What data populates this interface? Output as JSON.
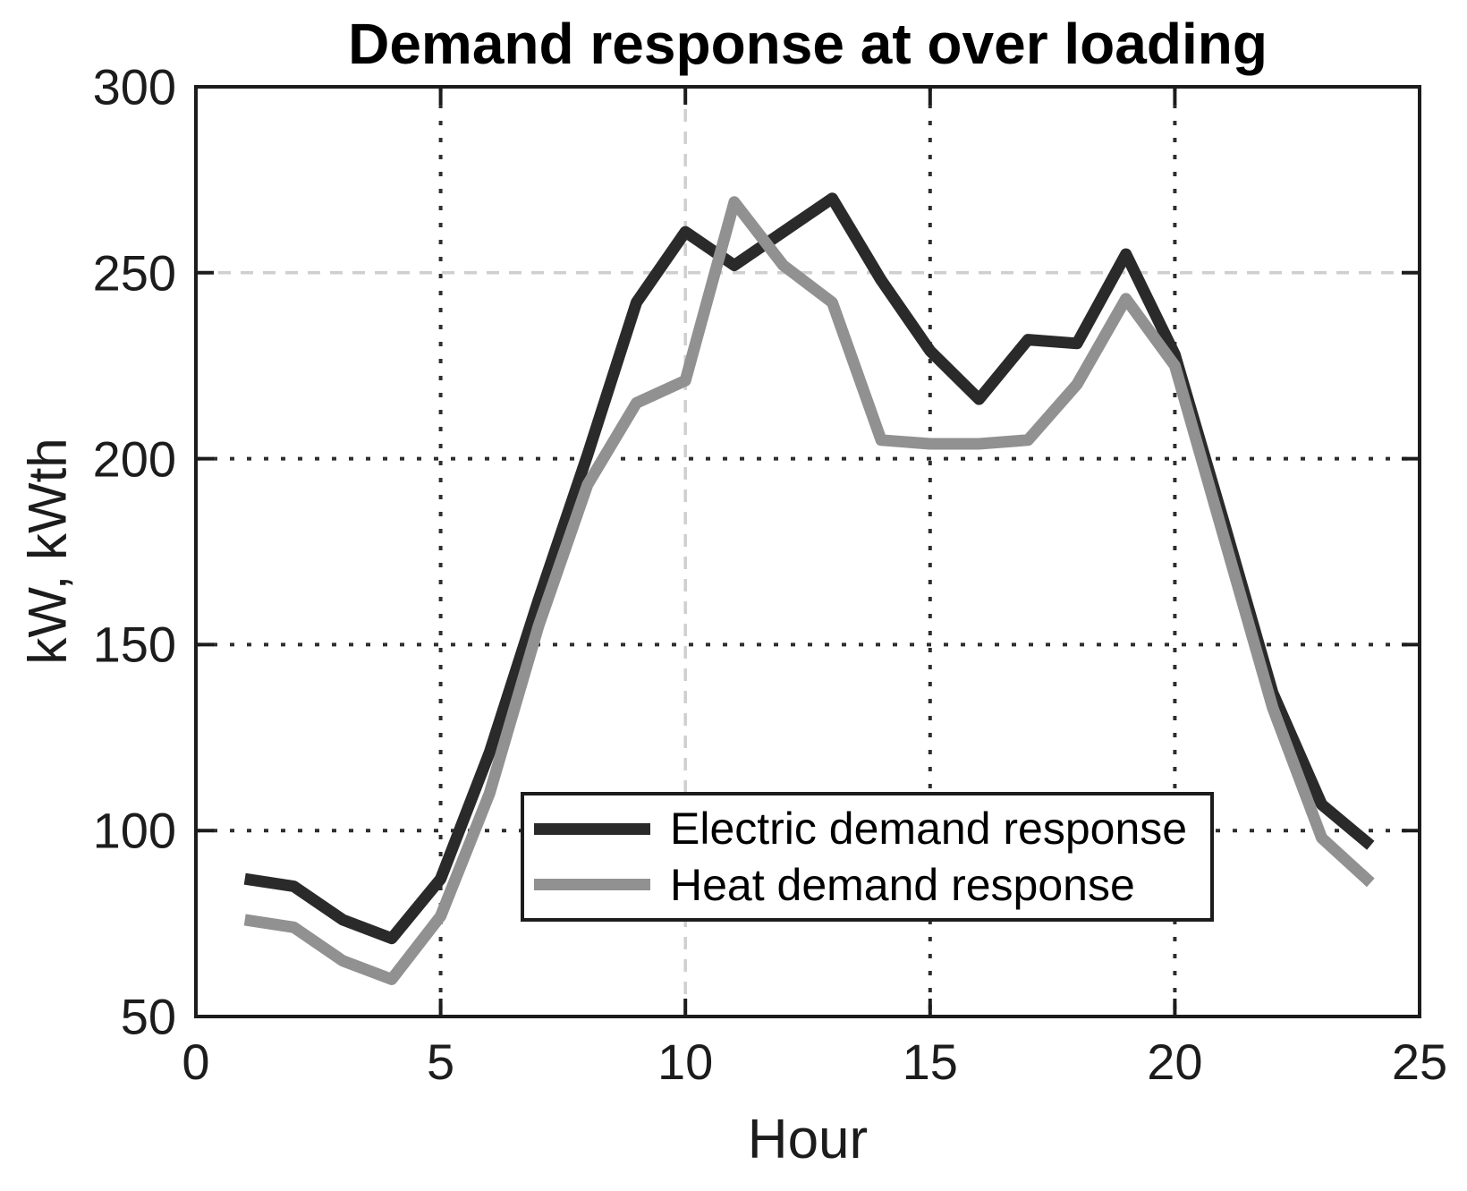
{
  "figure": {
    "background_color": "#ffffff",
    "axis_color": "#1c1c1c",
    "grid_dark_color": "#2e2e2e",
    "grid_light_color": "#cfcfcf"
  },
  "chart_data": {
    "type": "line",
    "title": "Demand response at over loading",
    "xlabel": "Hour",
    "ylabel": "kW, kWth",
    "xlim": [
      0,
      25
    ],
    "ylim": [
      50,
      300
    ],
    "xticks": [
      "0",
      "5",
      "10",
      "15",
      "20",
      "25"
    ],
    "xtick_values": [
      0,
      5,
      10,
      15,
      20,
      25
    ],
    "yticks": [
      "50",
      "100",
      "150",
      "200",
      "250",
      "300"
    ],
    "ytick_values": [
      50,
      100,
      150,
      200,
      250,
      300
    ],
    "grid": {
      "vertical": [
        {
          "at": 5,
          "style": "dark"
        },
        {
          "at": 10,
          "style": "light"
        },
        {
          "at": 15,
          "style": "dark"
        },
        {
          "at": 20,
          "style": "dark"
        }
      ],
      "horizontal": [
        {
          "at": 100,
          "style": "dark"
        },
        {
          "at": 150,
          "style": "dark"
        },
        {
          "at": 200,
          "style": "dark"
        },
        {
          "at": 250,
          "style": "light"
        }
      ]
    },
    "x": [
      1,
      2,
      3,
      4,
      5,
      6,
      7,
      8,
      9,
      10,
      11,
      12,
      13,
      14,
      15,
      16,
      17,
      18,
      19,
      20,
      21,
      22,
      23,
      24
    ],
    "series": [
      {
        "name": "Electric demand response",
        "color": "#2a2a2a",
        "values": [
          87,
          85,
          76,
          71,
          87,
          121,
          162,
          201,
          242,
          261,
          252,
          261,
          270,
          248,
          229,
          216,
          232,
          231,
          255,
          228,
          183,
          137,
          107,
          96
        ]
      },
      {
        "name": "Heat demand response",
        "color": "#919191",
        "values": [
          76,
          74,
          65,
          60,
          77,
          110,
          155,
          193,
          215,
          221,
          269,
          252,
          242,
          205,
          204,
          204,
          205,
          220,
          243,
          225,
          179,
          133,
          98,
          86
        ]
      }
    ],
    "legend_position": "lower center",
    "grid_on": true
  }
}
